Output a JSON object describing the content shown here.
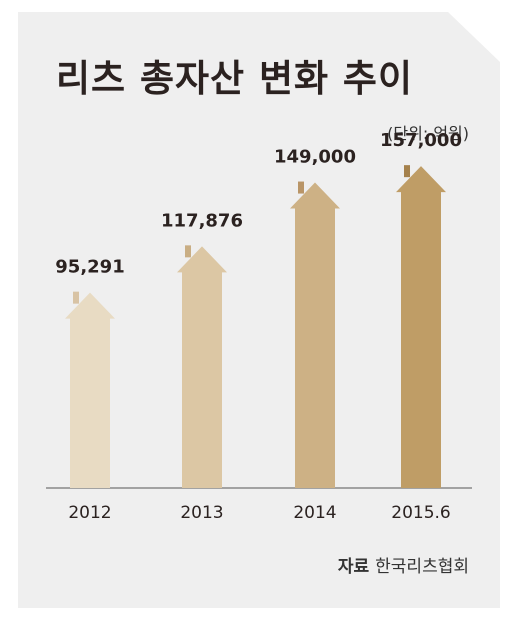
{
  "title": "리츠 총자산 변화 추이",
  "unit_note": "(단위: 억원)",
  "source": {
    "label": "자료",
    "text": "한국리츠협회"
  },
  "colors": {
    "background": "#efefef",
    "bars": [
      "#e8dbc3",
      "#dcc7a4",
      "#cdb185",
      "#bf9d66"
    ],
    "roof": [
      "#d8c3a4",
      "#c9ae84",
      "#b99567",
      "#a5814c"
    ]
  },
  "chart_data": {
    "type": "bar",
    "categories": [
      "2012",
      "2013",
      "2014",
      "2015.6"
    ],
    "values": [
      95291,
      117876,
      149000,
      157000
    ],
    "value_labels": [
      "95,291",
      "117,876",
      "149,000",
      "157,000"
    ],
    "title": "리츠 총자산 변화 추이",
    "xlabel": "",
    "ylabel": "",
    "ylim": [
      0,
      170000
    ],
    "grid": false,
    "legend": "none"
  }
}
